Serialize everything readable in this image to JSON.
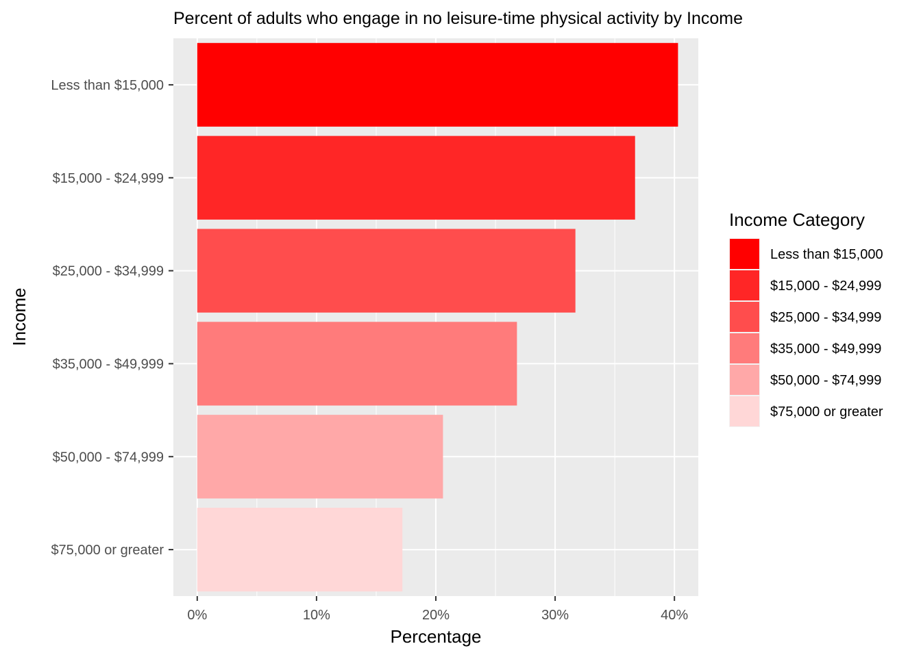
{
  "chart_data": {
    "type": "bar",
    "orientation": "horizontal",
    "title": "Percent of adults who engage in no leisure-time physical activity by Income",
    "xlabel": "Percentage",
    "ylabel": "Income",
    "xlim": [
      -0.02,
      0.42
    ],
    "x_ticks": [
      0,
      0.1,
      0.2,
      0.3,
      0.4
    ],
    "x_tick_labels": [
      "0%",
      "10%",
      "20%",
      "30%",
      "40%"
    ],
    "categories": [
      "Less than $15,000",
      "$15,000 - $24,999",
      "$25,000 - $34,999",
      "$35,000 - $49,999",
      "$50,000 - $74,999",
      "$75,000 or greater"
    ],
    "values": [
      0.403,
      0.367,
      0.317,
      0.268,
      0.206,
      0.172
    ],
    "colors": [
      "#FF0000",
      "#FF2626",
      "#FF4D4D",
      "#FF7B7B",
      "#FFA8A8",
      "#FFD7D7"
    ],
    "grid": true,
    "legend": {
      "title": "Income Category",
      "placement": "right",
      "entries": [
        "Less than $15,000",
        "$15,000 - $24,999",
        "$25,000 - $34,999",
        "$35,000 - $49,999",
        "$50,000 - $74,999",
        "$75,000 or greater"
      ]
    }
  }
}
